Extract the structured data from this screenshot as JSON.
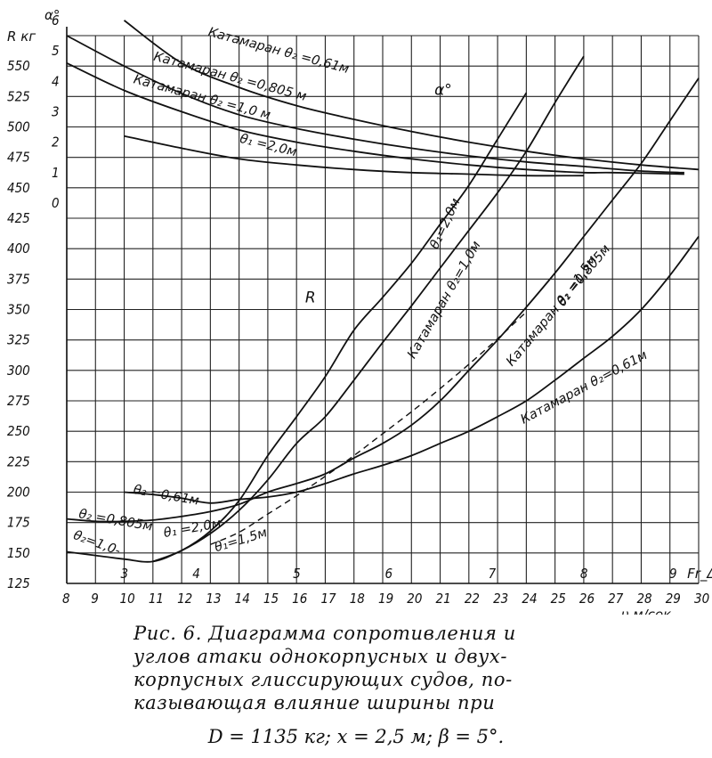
{
  "chart_data": {
    "type": "line",
    "xlabel": "υ м/сек",
    "x_ticks": [
      8,
      9,
      10,
      11,
      12,
      13,
      14,
      15,
      16,
      17,
      18,
      19,
      20,
      21,
      22,
      23,
      24,
      25,
      26,
      27,
      28,
      29,
      30
    ],
    "xlim": [
      8,
      30
    ],
    "left_axis_R": {
      "label": "R кг",
      "ticks": [
        125,
        150,
        175,
        200,
        225,
        250,
        275,
        300,
        325,
        350,
        375,
        400,
        425,
        450,
        475,
        500,
        525,
        550
      ],
      "ylim": [
        125,
        575
      ]
    },
    "left_axis_alpha": {
      "label": "α°",
      "ticks": [
        0,
        1,
        2,
        3,
        4,
        5,
        6
      ],
      "note": "α° scale: 0 at R=437.5, 1 unit = 25 кг"
    },
    "froude_axis": {
      "label": "Fr_Δ",
      "ticks": [
        3,
        4,
        5,
        6,
        7,
        8,
        9
      ],
      "x_positions": [
        10.0,
        12.5,
        16.0,
        19.2,
        22.8,
        26.0,
        29.1
      ]
    },
    "resistance_series": [
      {
        "name": "θ₁=2,0м",
        "x": [
          11.0,
          12,
          13,
          14,
          15,
          16,
          17,
          18,
          19,
          20,
          21,
          22,
          23,
          24
        ],
        "values": [
          143,
          152,
          168,
          193,
          230,
          262,
          295,
          333,
          360,
          388,
          420,
          452,
          490,
          528
        ]
      },
      {
        "name": "Катамаран θ₂=1,0м",
        "x": [
          8.0,
          9,
          10,
          11,
          12,
          13,
          14,
          15,
          16,
          17,
          18,
          19,
          20,
          21,
          22,
          23,
          24,
          25,
          26
        ],
        "values": [
          151,
          148,
          145,
          143,
          152,
          166,
          185,
          210,
          240,
          262,
          292,
          323,
          353,
          384,
          415,
          446,
          480,
          520,
          558
        ]
      },
      {
        "name": "Катамаран θ₂=0,805м",
        "x": [
          8.0,
          9,
          10,
          11,
          12,
          13,
          14,
          15,
          16,
          17,
          18,
          19,
          20,
          21,
          22,
          23,
          24,
          25,
          26,
          27,
          28,
          29,
          30
        ],
        "values": [
          178,
          176,
          176,
          177,
          180,
          184,
          190,
          200,
          207,
          215,
          228,
          240,
          255,
          275,
          300,
          325,
          352,
          380,
          410,
          440,
          470,
          505,
          540
        ]
      },
      {
        "name": "θ₁=1,5м",
        "x": [
          13.0,
          14,
          15,
          16,
          17,
          18,
          19,
          20,
          21,
          22,
          23,
          24
        ],
        "values": [
          157,
          167,
          182,
          197,
          213,
          230,
          248,
          266,
          285,
          305,
          326,
          348
        ]
      },
      {
        "name": "Катамаран θ₂=0,61м",
        "x": [
          10.0,
          11,
          12,
          13,
          14,
          15,
          16,
          17,
          18,
          19,
          20,
          21,
          22,
          23,
          24,
          25,
          26,
          27,
          28,
          29,
          30
        ],
        "values": [
          200,
          198,
          195,
          191,
          194,
          196,
          200,
          207,
          215,
          222,
          230,
          240,
          250,
          262,
          275,
          292,
          310,
          328,
          350,
          378,
          410
        ]
      }
    ],
    "alpha_series": [
      {
        "name": "Катамаран θ₂=0,61м",
        "x": [
          10.0,
          12,
          14,
          16,
          18,
          20,
          22,
          24,
          26,
          28,
          30
        ],
        "values": [
          6.0,
          4.6,
          3.8,
          3.2,
          2.75,
          2.35,
          2.0,
          1.7,
          1.45,
          1.25,
          1.1
        ]
      },
      {
        "name": "Катамаран θ₂=0,805м",
        "x": [
          8.0,
          10,
          12,
          14,
          16,
          18,
          20,
          22,
          24,
          26,
          28,
          29.5
        ],
        "values": [
          5.5,
          4.5,
          3.6,
          2.9,
          2.45,
          2.1,
          1.8,
          1.55,
          1.35,
          1.2,
          1.05,
          1.0
        ]
      },
      {
        "name": "Катамаран θ₂=1,0м",
        "x": [
          8.0,
          10,
          12,
          14,
          16,
          18,
          20,
          22,
          24,
          26,
          27,
          29.5
        ],
        "values": [
          4.6,
          3.7,
          3.0,
          2.4,
          2.0,
          1.7,
          1.45,
          1.25,
          1.1,
          1.0,
          1.0,
          0.95
        ]
      },
      {
        "name": "θ₁=2,0м",
        "x": [
          10.0,
          12,
          14,
          16,
          18,
          20,
          22,
          24,
          26
        ],
        "values": [
          2.2,
          1.8,
          1.45,
          1.25,
          1.1,
          1.0,
          0.95,
          0.9,
          0.9
        ]
      }
    ],
    "labels": {
      "alpha_main": "α°",
      "r_main": "R",
      "alpha_061": "Катамаран θ₂ =0,61м",
      "alpha_0805": "Катамаран θ₂ =0,805 м",
      "alpha_10": "Катамаран θ₂ =1,0 м",
      "alpha_20": "θ₁ =2,0м",
      "res_20": "θ₁=2,0м",
      "res_10": "Катамаран θ₂=1,0м",
      "res_0805": "Катамаран θ₂ =0,805м",
      "res_15": "θ₁ =1,5м",
      "res_061": "Катамаран θ₂=0,61м",
      "left_061": "θ₂ =0,61м",
      "left_0805": "θ₂ =0,805м",
      "left_10": "θ₂=1,0-",
      "left_20": "θ₁ =2,0м",
      "left_15": "θ₁=1,5м"
    },
    "grid": true
  },
  "caption": {
    "line1": "Рис. 6. Диаграмма сопротивления и",
    "line2": "углов атаки однокорпусных и двух-",
    "line3": "корпусных глиссирующих судов, по-",
    "line4": "казывающая влияние ширины при",
    "formula": "D = 1135 кг; x = 2,5 м; β = 5°."
  }
}
